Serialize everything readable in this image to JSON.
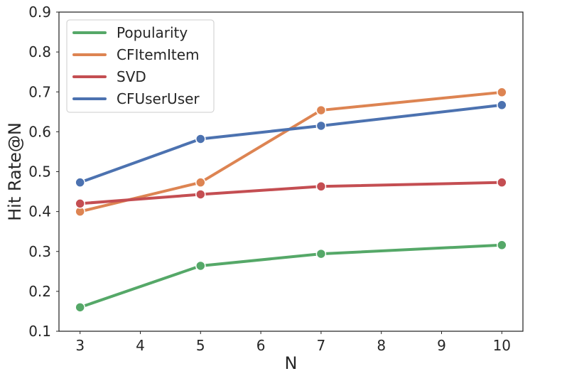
{
  "chart_data": {
    "type": "line",
    "title": "",
    "xlabel": "N",
    "ylabel": "Hit Rate@N",
    "x": [
      3,
      5,
      7,
      10
    ],
    "xlim": [
      2.65,
      10.35
    ],
    "ylim": [
      0.1,
      0.9
    ],
    "xticks": [
      3,
      4,
      5,
      6,
      7,
      8,
      9,
      10
    ],
    "yticks": [
      0.1,
      0.2,
      0.3,
      0.4,
      0.5,
      0.6,
      0.7,
      0.8,
      0.9
    ],
    "ytick_labels": [
      "0.1",
      "0.2",
      "0.3",
      "0.4",
      "0.5",
      "0.6",
      "0.7",
      "0.8",
      "0.9"
    ],
    "grid": false,
    "legend_position": "top-left",
    "markers": true,
    "series": [
      {
        "name": "Popularity",
        "color": "#55a868",
        "values": [
          0.16,
          0.264,
          0.294,
          0.316
        ]
      },
      {
        "name": "CFItemItem",
        "color": "#dd8452",
        "values": [
          0.4,
          0.473,
          0.654,
          0.699
        ]
      },
      {
        "name": "SVD",
        "color": "#c44e52",
        "values": [
          0.42,
          0.443,
          0.463,
          0.473
        ]
      },
      {
        "name": "CFUserUser",
        "color": "#4c72b0",
        "values": [
          0.473,
          0.582,
          0.615,
          0.667
        ]
      }
    ]
  }
}
